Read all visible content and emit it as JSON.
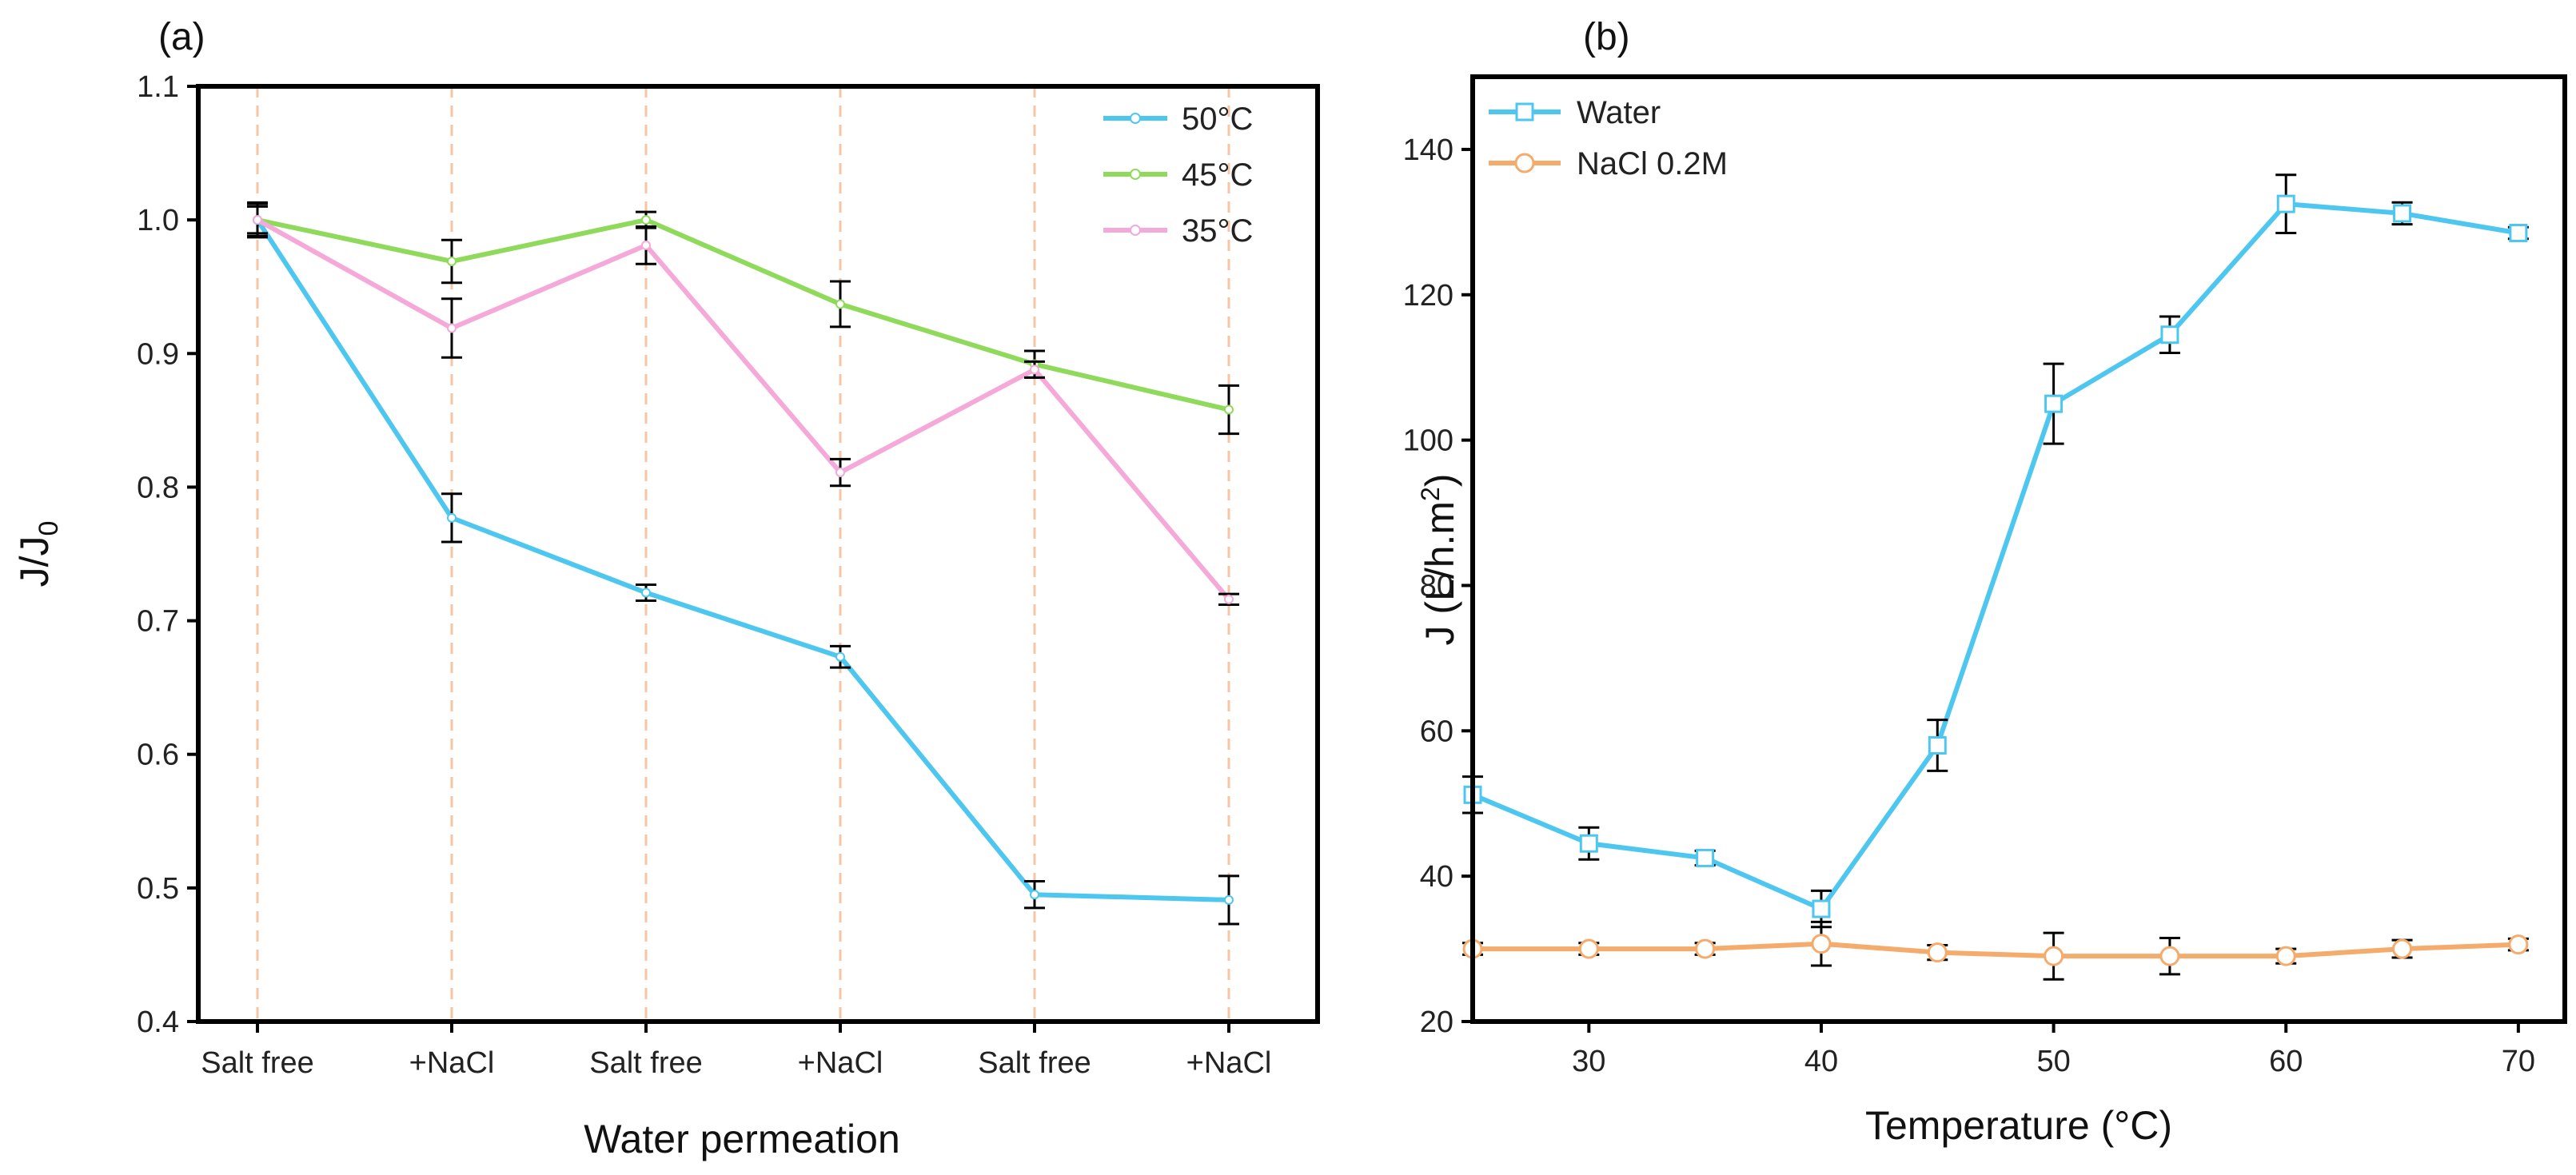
{
  "chart_data": [
    {
      "type": "line",
      "panel_label": "(a)",
      "xlabel": "Water permeation",
      "ylabel": "J/J",
      "ylabel_subscript": "0",
      "categories": [
        "Salt free",
        "+NaCl",
        "Salt free",
        "+NaCl",
        "Salt free",
        "+NaCl"
      ],
      "ylim": [
        0.4,
        1.1
      ],
      "yticks": [
        0.4,
        0.5,
        0.6,
        0.7,
        0.8,
        0.9,
        1.0,
        1.1
      ],
      "ytick_labels": [
        "0.4",
        "0.5",
        "0.6",
        "0.7",
        "0.8",
        "0.9",
        "1.0",
        "1.1"
      ],
      "grid": "vertical dashed lines at categories",
      "legend_position": "top-right",
      "series": [
        {
          "name": "50°C",
          "color": "#4dc7f0",
          "values": [
            1.0,
            0.777,
            0.721,
            0.673,
            0.495,
            0.491
          ],
          "errors": [
            0.01,
            0.018,
            0.006,
            0.008,
            0.01,
            0.018
          ]
        },
        {
          "name": "45°C",
          "color": "#8fda5a",
          "values": [
            1.0,
            0.969,
            1.0,
            0.937,
            0.892,
            0.858
          ],
          "errors": [
            0.013,
            0.016,
            0.006,
            0.017,
            0.01,
            0.018
          ]
        },
        {
          "name": "35°C",
          "color": "#f4a9d8",
          "values": [
            1.0,
            0.919,
            0.981,
            0.811,
            0.888,
            0.716
          ],
          "errors": [
            0.012,
            0.022,
            0.014,
            0.01,
            0.006,
            0.004
          ]
        }
      ]
    },
    {
      "type": "line",
      "panel_label": "(b)",
      "xlabel": "Temperature (°C)",
      "ylabel": "J (L/h.m",
      "ylabel_superscript": "2",
      "ylabel_close": ")",
      "xlim": [
        25,
        72
      ],
      "xticks": [
        30,
        40,
        50,
        60,
        70
      ],
      "xtick_labels": [
        "30",
        "40",
        "50",
        "60",
        "70"
      ],
      "ylim": [
        20,
        150
      ],
      "yticks": [
        20,
        40,
        60,
        80,
        100,
        120,
        140
      ],
      "ytick_labels": [
        "20",
        "40",
        "60",
        "80",
        "100",
        "120",
        "140"
      ],
      "legend_position": "top-left",
      "x": [
        25,
        30,
        35,
        40,
        45,
        50,
        55,
        60,
        65,
        70
      ],
      "series": [
        {
          "name": "Water",
          "color": "#4dc7f0",
          "marker": "square",
          "values": [
            51.2,
            44.5,
            42.5,
            35.5,
            58,
            105,
            114.5,
            132.5,
            131.2,
            128.5
          ],
          "errors": [
            2.5,
            2.2,
            1.0,
            2.5,
            3.5,
            5.5,
            2.5,
            4.0,
            1.5,
            0.8
          ]
        },
        {
          "name": "NaCl 0.2M",
          "color": "#f5ab6b",
          "marker": "circle",
          "values": [
            30,
            30,
            30,
            30.7,
            29.5,
            29,
            29,
            29,
            30,
            30.6
          ],
          "errors": [
            0.8,
            0.8,
            0.8,
            3.0,
            1.0,
            3.2,
            2.5,
            1.0,
            1.2,
            0.8
          ]
        }
      ]
    }
  ]
}
